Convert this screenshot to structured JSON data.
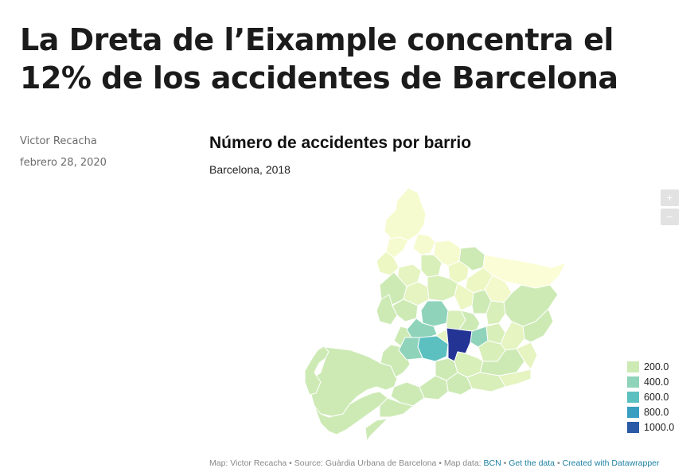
{
  "article": {
    "headline": "La Dreta de l’Eixample concentra el 12% de los accidentes de Barcelona",
    "author": "Victor Recacha",
    "date": "febrero 28, 2020"
  },
  "map": {
    "title": "Número de accidentes por barrio",
    "subtitle": "Barcelona, 2018",
    "zoom_in": "+",
    "zoom_out": "−",
    "legend": [
      {
        "label": "200.0",
        "color": "#cdeab5"
      },
      {
        "label": "400.0",
        "color": "#8fd3bb"
      },
      {
        "label": "600.0",
        "color": "#5cc0c1"
      },
      {
        "label": "800.0",
        "color": "#3a9ec0"
      },
      {
        "label": "1000.0",
        "color": "#2b5aa6"
      }
    ],
    "highlight": {
      "name": "la Dreta de l'Eixample",
      "color": "#233494"
    },
    "footer": {
      "text": "Map: Victor Recacha • Source: Guàrdia Urbana de Barcelona • Map data:",
      "link_bcn": "BCN",
      "sep1": "•",
      "link_data": "Get the data",
      "sep2": "•",
      "link_dw": "Created with Datawrapper"
    }
  }
}
